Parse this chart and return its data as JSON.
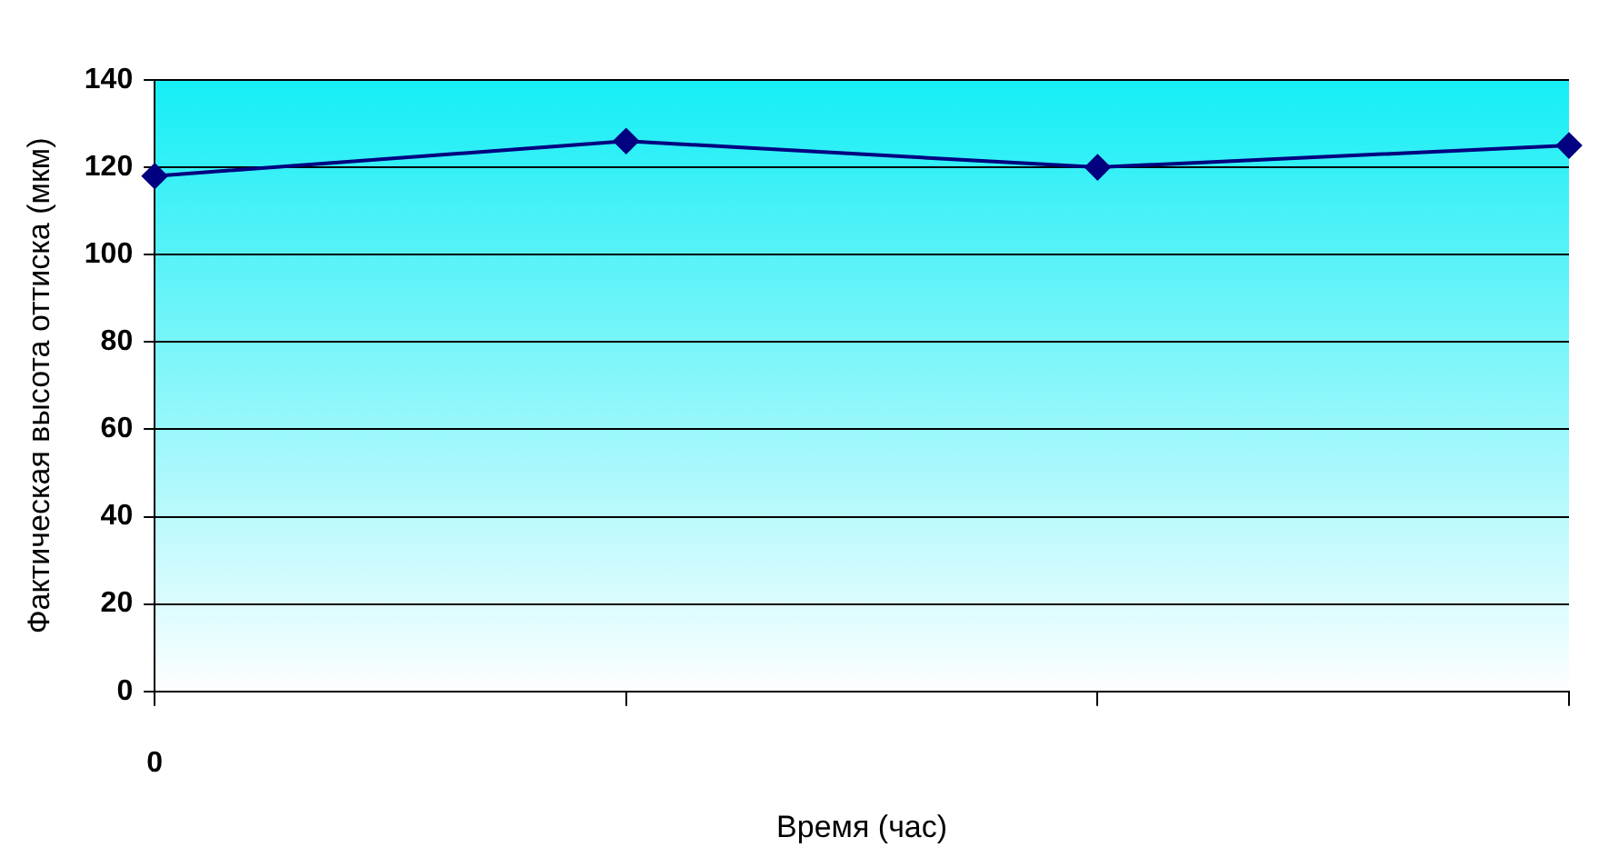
{
  "chart_data": {
    "type": "line",
    "xlabel": "Время (час)",
    "ylabel": "Фактическая высота оттиска (мкм)",
    "categories": [
      "0",
      null,
      null,
      null
    ],
    "series": [
      {
        "color": "#000080",
        "values": [
          118,
          126,
          120,
          125
        ]
      }
    ],
    "ylim": [
      0,
      140
    ],
    "yticks": [
      0,
      20,
      40,
      60,
      80,
      100,
      120,
      140
    ],
    "grid": "y",
    "legend": false,
    "marker": "diamond",
    "line_style": "solid"
  }
}
